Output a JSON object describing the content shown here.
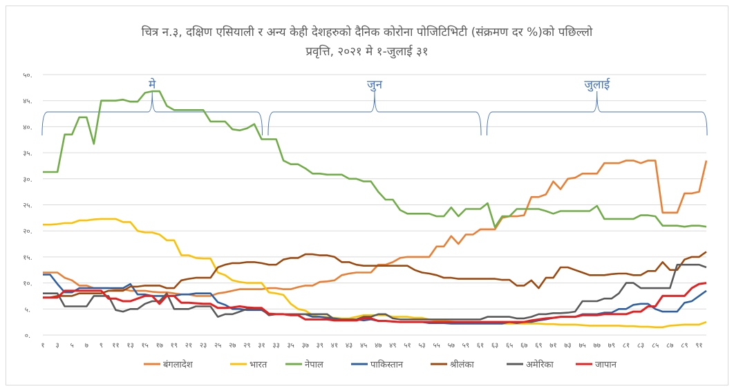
{
  "chart_data": {
    "type": "line",
    "title": [
      "चित्र न.३, दक्षिण एसियाली र अन्य केही देशहरुको दैनिक कोरोना पोजिटिभिटी (संक्रमण दर %)को पछिल्लो",
      "प्रवृत्ति, २०२१ मे १-जुलाई ३१"
    ],
    "y_ticks": [
      "०.",
      "५.",
      "१०.",
      "१५.",
      "२०.",
      "२५.",
      "३०.",
      "३५.",
      "४०.",
      "४५.",
      "५०."
    ],
    "ylim": [
      0,
      50
    ],
    "x_count": 92,
    "x_tick_labels": [
      "१",
      "३",
      "५",
      "७",
      "९",
      "११",
      "१३",
      "१५",
      "१७",
      "१९",
      "२१",
      "२३",
      "२५",
      "२७",
      "२९",
      "३१",
      "३३",
      "३५",
      "३७",
      "३९",
      "४१",
      "४३",
      "४५",
      "४७",
      "४९",
      "५१",
      "५३",
      "५५",
      "५७",
      "५९",
      "६१",
      "६३",
      "६५",
      "६७",
      "६९",
      "७१",
      "७३",
      "७५",
      "७७",
      "७९",
      "८१",
      "८३",
      "८५",
      "८७",
      "८९",
      "९१"
    ],
    "month_brackets": [
      {
        "label": "मे",
        "start": 1,
        "end": 31
      },
      {
        "label": "जुन",
        "start": 32,
        "end": 61
      },
      {
        "label": "जुलाई",
        "start": 62,
        "end": 92
      }
    ],
    "series": [
      {
        "name": "बंगलादेश",
        "color": "#ed7d31",
        "values": [
          12,
          12,
          12,
          11,
          10.5,
          9.5,
          9.5,
          9,
          9,
          9,
          8.8,
          8.8,
          8.5,
          8.5,
          8.5,
          8.3,
          8.2,
          8.2,
          8,
          7.8,
          7.8,
          7.5,
          7.5,
          7.5,
          8,
          8.2,
          8.5,
          8.8,
          8.8,
          8.8,
          8.8,
          9,
          9,
          8.8,
          8.8,
          9.2,
          9.5,
          9.5,
          10.2,
          10.3,
          10.5,
          11.5,
          11.8,
          12,
          12,
          12,
          13.5,
          13.5,
          14,
          14.8,
          15,
          15,
          15,
          15,
          17,
          17,
          19,
          17.5,
          19.3,
          19.3,
          20.3,
          20.3,
          20.3,
          22.5,
          22.8,
          22.8,
          23,
          26.5,
          26.5,
          27,
          29.5,
          28,
          30,
          30.2,
          31,
          31,
          31,
          33,
          33,
          33,
          33.5,
          33.5,
          33,
          33.5,
          33.5,
          23.5,
          23.5,
          23.5,
          27.2,
          27.2,
          27.5,
          33.5
        ]
      },
      {
        "name": "भारत",
        "color": "#ffc000",
        "values": [
          21.2,
          21.2,
          21.3,
          21.5,
          21.5,
          22,
          22,
          22.2,
          22.3,
          22.3,
          22.3,
          21.7,
          21.7,
          20,
          19.7,
          19.7,
          19.3,
          18.2,
          18.2,
          15.3,
          15.3,
          14.8,
          14.7,
          14.7,
          12,
          11.5,
          10.5,
          10.2,
          10,
          10,
          10,
          8.2,
          8,
          7.7,
          6,
          5,
          4.7,
          3.8,
          3.5,
          3.5,
          3.3,
          3.2,
          3.2,
          3.5,
          3.8,
          3.8,
          3.8,
          3.8,
          3.5,
          3.5,
          3.5,
          3.3,
          3.3,
          3,
          2.8,
          2.7,
          2.6,
          2.5,
          2.5,
          2.5,
          2.3,
          2.3,
          2.3,
          2.2,
          2.2,
          2.2,
          2.2,
          2.2,
          2.2,
          2.1,
          2.1,
          2,
          2,
          2,
          1.9,
          1.8,
          1.8,
          1.8,
          1.8,
          1.8,
          1.7,
          1.7,
          1.6,
          1.6,
          1.5,
          1.5,
          1.8,
          1.9,
          2,
          2,
          2,
          2.5
        ]
      },
      {
        "name": "नेपाल",
        "color": "#70ad47",
        "values": [
          31.3,
          31.3,
          31.3,
          38.5,
          38.5,
          41.8,
          41.8,
          36.7,
          45,
          45,
          45,
          45.2,
          44.8,
          44.8,
          46.5,
          46.8,
          46.8,
          44,
          43.2,
          43.2,
          43.2,
          43.2,
          43.2,
          41,
          41,
          41,
          39.5,
          39.3,
          39.7,
          40.5,
          37.6,
          37.6,
          37.6,
          33.5,
          32.8,
          32.8,
          32,
          31,
          31,
          30.8,
          30.8,
          30.8,
          30,
          30,
          29.5,
          29.5,
          27.5,
          26,
          26,
          24,
          23.3,
          23.3,
          23.3,
          23.3,
          22.8,
          22.8,
          24.5,
          22.8,
          24.2,
          24.2,
          24.2,
          25.3,
          20.7,
          22.8,
          22.8,
          24.2,
          24.2,
          24.2,
          24.2,
          23.8,
          23.3,
          23.8,
          23.8,
          23.8,
          23.8,
          23.8,
          24.8,
          22.3,
          22.3,
          22.3,
          22.3,
          22.3,
          23,
          23,
          22.8,
          21,
          21,
          21,
          20.8,
          21,
          21,
          20.8
        ]
      },
      {
        "name": "पाकिस्तान",
        "color": "#2e5fa3",
        "values": [
          11.6,
          11.6,
          9.8,
          8.2,
          8.2,
          9,
          9,
          9,
          9,
          9,
          9,
          9,
          9.8,
          7.8,
          7.8,
          7.5,
          7.5,
          7.5,
          7.5,
          7.8,
          7.8,
          8,
          8,
          8,
          6.3,
          5.8,
          5,
          5,
          4.8,
          4.8,
          4.8,
          4,
          4,
          4,
          3.8,
          4,
          4,
          3.5,
          3.5,
          3.3,
          3.2,
          3,
          3,
          3,
          2.8,
          3,
          2.7,
          2.7,
          2.6,
          2.5,
          2.5,
          2.5,
          2.5,
          2.3,
          2.3,
          2.3,
          2.2,
          2.2,
          2.2,
          2.2,
          2.2,
          2.2,
          2.2,
          2.2,
          2.5,
          2.3,
          2.5,
          2.5,
          2.8,
          3,
          3.3,
          3.5,
          3.5,
          3.5,
          4,
          4,
          4,
          4.3,
          4.3,
          5,
          5,
          5.8,
          6,
          6,
          5,
          4.5,
          4.5,
          4.5,
          6.2,
          6.5,
          7.5,
          8.5
        ]
      },
      {
        "name": "श्रीलंका",
        "color": "#9e480e",
        "values": [
          7.2,
          7.2,
          7.5,
          7.5,
          7.5,
          8,
          8,
          8,
          8,
          8.5,
          8.5,
          8.5,
          9.3,
          9.3,
          9.5,
          9.5,
          9.5,
          9,
          9,
          10.5,
          10.8,
          11,
          11,
          11,
          13,
          13.5,
          13.8,
          13.8,
          14,
          14,
          13.8,
          13.5,
          13.5,
          14.5,
          14.8,
          14.8,
          15.5,
          15.5,
          15.3,
          15.3,
          15,
          14,
          14,
          13.5,
          13.3,
          13.3,
          13.3,
          13.3,
          13.3,
          13.3,
          13.3,
          12.5,
          12,
          11.8,
          11.5,
          11,
          11,
          10.8,
          10.8,
          10.8,
          10.8,
          10.8,
          10.8,
          10.6,
          10.6,
          9.5,
          9.5,
          10.5,
          9,
          11,
          11,
          13,
          13,
          12.5,
          12,
          11.5,
          11.5,
          11.5,
          11.7,
          11.8,
          11.8,
          11.5,
          11.5,
          12.3,
          12.3,
          14,
          12.5,
          12.5,
          14.5,
          15,
          15,
          16
        ]
      },
      {
        "name": "अमेरिका",
        "color": "#595959",
        "values": [
          8,
          8,
          8,
          5.5,
          5.5,
          5.5,
          5.5,
          7.5,
          7.5,
          7.5,
          4.8,
          4.5,
          5,
          5,
          6,
          6.5,
          6.5,
          8,
          5,
          5,
          5,
          5.5,
          5.5,
          5.5,
          3.5,
          4,
          4,
          4.5,
          5,
          5,
          5,
          3.8,
          4,
          4,
          4,
          4,
          4,
          4,
          4,
          4,
          3,
          3,
          3,
          3,
          3.5,
          3.5,
          4,
          4,
          3.2,
          3,
          3,
          3,
          3,
          3,
          3,
          3,
          3,
          3,
          3,
          3,
          3,
          3.5,
          3.5,
          3.5,
          3.5,
          3.2,
          3.2,
          3.5,
          4,
          4,
          4.2,
          4.2,
          4.3,
          4.5,
          6.5,
          6.5,
          6.5,
          7,
          7,
          8,
          10,
          10,
          9,
          9,
          9,
          9,
          9,
          13.5,
          13.5,
          13.5,
          13.5,
          13
        ]
      },
      {
        "name": "जापान",
        "color": "#e81f1f",
        "values": [
          7.2,
          7.2,
          7.2,
          8.5,
          8.5,
          8.5,
          8.5,
          8.5,
          8.5,
          7,
          7,
          6.5,
          6.5,
          7,
          7.5,
          7.5,
          6,
          7.5,
          7.5,
          6.2,
          6.2,
          6.1,
          6,
          6,
          5.2,
          5.2,
          5.3,
          5.5,
          5.3,
          5.2,
          5.2,
          4.1,
          4,
          4,
          3.8,
          3.8,
          3,
          3,
          3,
          3,
          2.8,
          2.8,
          2.8,
          2.8,
          3.2,
          3.2,
          2.7,
          2.7,
          2.6,
          2.5,
          2.5,
          2.5,
          2.5,
          2.5,
          2.5,
          2.5,
          2.5,
          2.5,
          2.5,
          2.5,
          2.5,
          2.5,
          2.5,
          2.5,
          2.5,
          2.5,
          2.5,
          2.8,
          3,
          3.2,
          3.3,
          3.5,
          3.5,
          3.5,
          3.8,
          3.8,
          3.8,
          4,
          4,
          4,
          4,
          4.5,
          4.5,
          5.5,
          5.5,
          7.5,
          7.5,
          7.5,
          7.5,
          9,
          9.8,
          10
        ]
      }
    ]
  }
}
